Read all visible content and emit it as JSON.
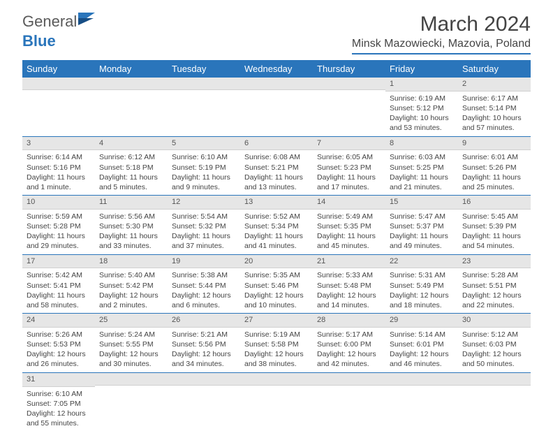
{
  "logo": {
    "text1": "General",
    "text2": "Blue"
  },
  "title": "March 2024",
  "location": "Minsk Mazowiecki, Mazovia, Poland",
  "colors": {
    "accent": "#2a75bb",
    "header_text": "#ffffff",
    "daybar_bg": "#e6e6e6",
    "body_text": "#444444",
    "logo_gray": "#5a5a5a"
  },
  "weekdays": [
    "Sunday",
    "Monday",
    "Tuesday",
    "Wednesday",
    "Thursday",
    "Friday",
    "Saturday"
  ],
  "weeks": [
    [
      null,
      null,
      null,
      null,
      null,
      {
        "n": "1",
        "sr": "6:19 AM",
        "ss": "5:12 PM",
        "dl": "10 hours and 53 minutes."
      },
      {
        "n": "2",
        "sr": "6:17 AM",
        "ss": "5:14 PM",
        "dl": "10 hours and 57 minutes."
      }
    ],
    [
      {
        "n": "3",
        "sr": "6:14 AM",
        "ss": "5:16 PM",
        "dl": "11 hours and 1 minute."
      },
      {
        "n": "4",
        "sr": "6:12 AM",
        "ss": "5:18 PM",
        "dl": "11 hours and 5 minutes."
      },
      {
        "n": "5",
        "sr": "6:10 AM",
        "ss": "5:19 PM",
        "dl": "11 hours and 9 minutes."
      },
      {
        "n": "6",
        "sr": "6:08 AM",
        "ss": "5:21 PM",
        "dl": "11 hours and 13 minutes."
      },
      {
        "n": "7",
        "sr": "6:05 AM",
        "ss": "5:23 PM",
        "dl": "11 hours and 17 minutes."
      },
      {
        "n": "8",
        "sr": "6:03 AM",
        "ss": "5:25 PM",
        "dl": "11 hours and 21 minutes."
      },
      {
        "n": "9",
        "sr": "6:01 AM",
        "ss": "5:26 PM",
        "dl": "11 hours and 25 minutes."
      }
    ],
    [
      {
        "n": "10",
        "sr": "5:59 AM",
        "ss": "5:28 PM",
        "dl": "11 hours and 29 minutes."
      },
      {
        "n": "11",
        "sr": "5:56 AM",
        "ss": "5:30 PM",
        "dl": "11 hours and 33 minutes."
      },
      {
        "n": "12",
        "sr": "5:54 AM",
        "ss": "5:32 PM",
        "dl": "11 hours and 37 minutes."
      },
      {
        "n": "13",
        "sr": "5:52 AM",
        "ss": "5:34 PM",
        "dl": "11 hours and 41 minutes."
      },
      {
        "n": "14",
        "sr": "5:49 AM",
        "ss": "5:35 PM",
        "dl": "11 hours and 45 minutes."
      },
      {
        "n": "15",
        "sr": "5:47 AM",
        "ss": "5:37 PM",
        "dl": "11 hours and 49 minutes."
      },
      {
        "n": "16",
        "sr": "5:45 AM",
        "ss": "5:39 PM",
        "dl": "11 hours and 54 minutes."
      }
    ],
    [
      {
        "n": "17",
        "sr": "5:42 AM",
        "ss": "5:41 PM",
        "dl": "11 hours and 58 minutes."
      },
      {
        "n": "18",
        "sr": "5:40 AM",
        "ss": "5:42 PM",
        "dl": "12 hours and 2 minutes."
      },
      {
        "n": "19",
        "sr": "5:38 AM",
        "ss": "5:44 PM",
        "dl": "12 hours and 6 minutes."
      },
      {
        "n": "20",
        "sr": "5:35 AM",
        "ss": "5:46 PM",
        "dl": "12 hours and 10 minutes."
      },
      {
        "n": "21",
        "sr": "5:33 AM",
        "ss": "5:48 PM",
        "dl": "12 hours and 14 minutes."
      },
      {
        "n": "22",
        "sr": "5:31 AM",
        "ss": "5:49 PM",
        "dl": "12 hours and 18 minutes."
      },
      {
        "n": "23",
        "sr": "5:28 AM",
        "ss": "5:51 PM",
        "dl": "12 hours and 22 minutes."
      }
    ],
    [
      {
        "n": "24",
        "sr": "5:26 AM",
        "ss": "5:53 PM",
        "dl": "12 hours and 26 minutes."
      },
      {
        "n": "25",
        "sr": "5:24 AM",
        "ss": "5:55 PM",
        "dl": "12 hours and 30 minutes."
      },
      {
        "n": "26",
        "sr": "5:21 AM",
        "ss": "5:56 PM",
        "dl": "12 hours and 34 minutes."
      },
      {
        "n": "27",
        "sr": "5:19 AM",
        "ss": "5:58 PM",
        "dl": "12 hours and 38 minutes."
      },
      {
        "n": "28",
        "sr": "5:17 AM",
        "ss": "6:00 PM",
        "dl": "12 hours and 42 minutes."
      },
      {
        "n": "29",
        "sr": "5:14 AM",
        "ss": "6:01 PM",
        "dl": "12 hours and 46 minutes."
      },
      {
        "n": "30",
        "sr": "5:12 AM",
        "ss": "6:03 PM",
        "dl": "12 hours and 50 minutes."
      }
    ],
    [
      {
        "n": "31",
        "sr": "6:10 AM",
        "ss": "7:05 PM",
        "dl": "12 hours and 55 minutes."
      },
      null,
      null,
      null,
      null,
      null,
      null
    ]
  ],
  "labels": {
    "sunrise": "Sunrise: ",
    "sunset": "Sunset: ",
    "daylight": "Daylight: "
  }
}
